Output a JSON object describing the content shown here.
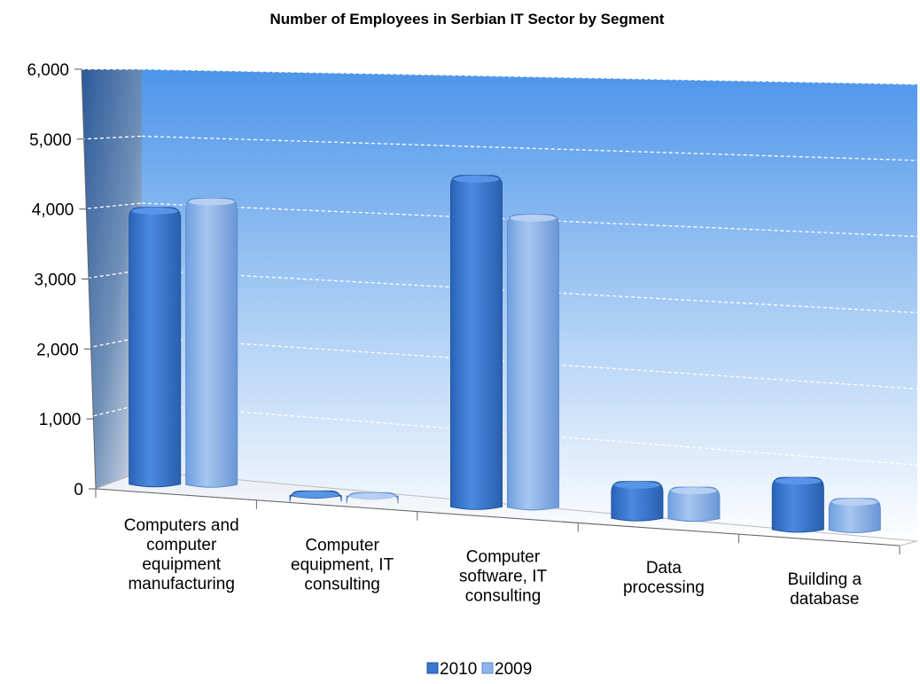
{
  "chart_data": {
    "type": "bar",
    "title": "Number of Employees in Serbian IT Sector by Segment",
    "xlabel": "",
    "ylabel": "",
    "ylim": [
      0,
      6000
    ],
    "yticks": [
      "0",
      "1,000",
      "2,000",
      "3,000",
      "4,000",
      "5,000",
      "6,000"
    ],
    "grid": true,
    "legend_position": "bottom",
    "categories": [
      [
        "Computers and",
        "computer",
        "equipment",
        "manufacturing"
      ],
      [
        "Computer",
        "equipment, IT",
        "consulting"
      ],
      [
        "Computer",
        "software, IT",
        "consulting"
      ],
      [
        "Data",
        "processing"
      ],
      [
        "Building a",
        "database"
      ]
    ],
    "series": [
      {
        "name": "2010",
        "values": [
          4300,
          70,
          5150,
          570,
          810
        ],
        "color": "#3f7fd6"
      },
      {
        "name": "2009",
        "values": [
          4450,
          50,
          4550,
          490,
          490
        ],
        "color": "#8cb3ea"
      }
    ]
  }
}
